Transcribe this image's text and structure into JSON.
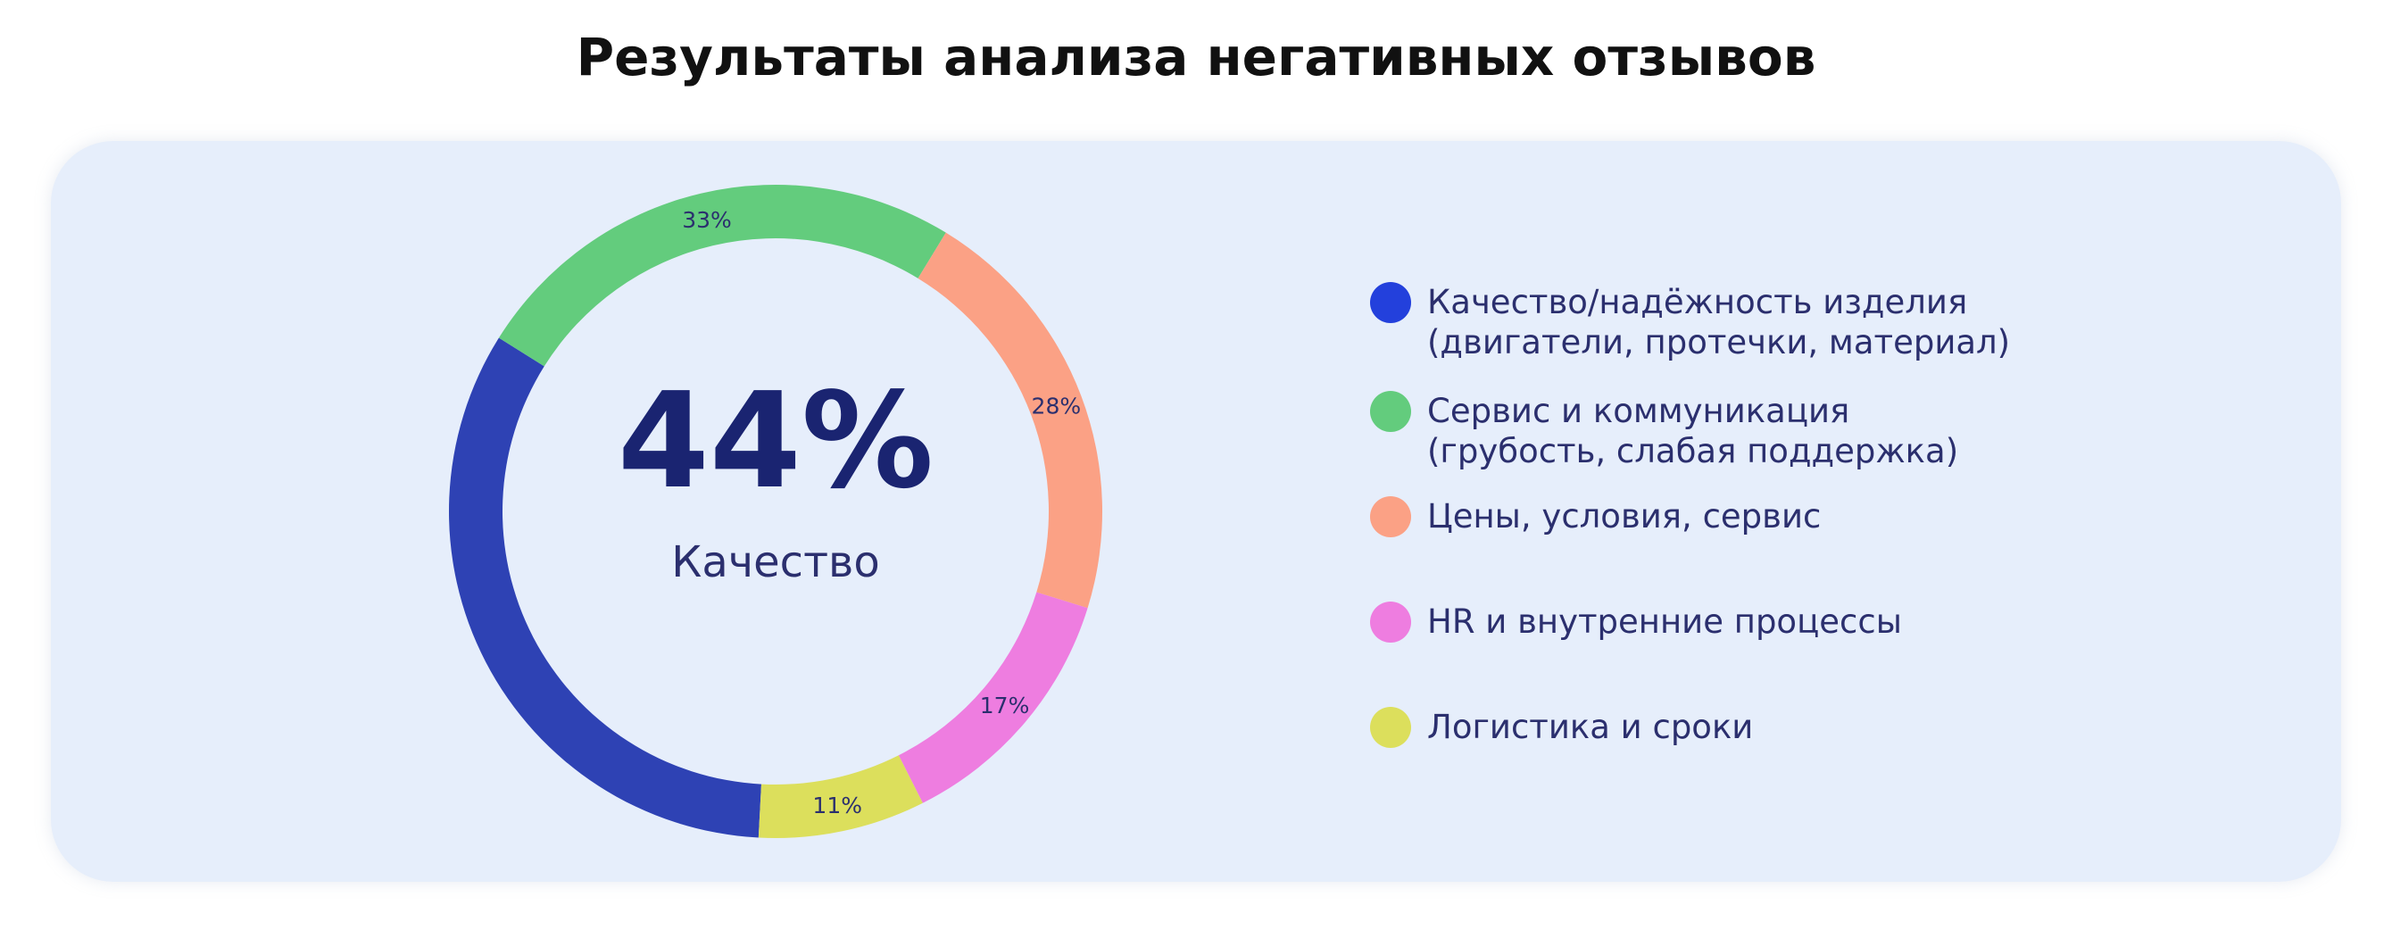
{
  "title": "Результаты анализа негативных отзывов",
  "center": {
    "value": "44%",
    "label": "Качество"
  },
  "chart_data": {
    "type": "pie",
    "title": "Результаты анализа негативных отзывов",
    "center_value": "44%",
    "center_label": "Качество",
    "slices": [
      {
        "label": "Качество/надёжность изделия (двигатели, протечки, материал)",
        "value": 44,
        "data_label": "",
        "color": "#2e42b4"
      },
      {
        "label": "Сервис и коммуникация (грубость, слабая поддержка)",
        "value": 33,
        "data_label": "33%",
        "color": "#63cc7d"
      },
      {
        "label": "Цены, условия, сервис",
        "value": 28,
        "data_label": "28%",
        "color": "#fba185"
      },
      {
        "label": "HR и внутренние процессы",
        "value": 17,
        "data_label": "17%",
        "color": "#ee7de0"
      },
      {
        "label": "Логистика и сроки",
        "value": 11,
        "data_label": "11%",
        "color": "#dcdf5c"
      }
    ],
    "legend_position": "right"
  },
  "legend": [
    {
      "label": "Качество/надёжность изделия\n(двигатели, протечки, материал)",
      "color": "#2340dc"
    },
    {
      "label": "Сервис и коммуникация\n(грубость, слабая поддержка)",
      "color": "#63cc7d"
    },
    {
      "label": "Цены, условия, сервис",
      "color": "#fba185"
    },
    {
      "label": "HR и внутренние процессы",
      "color": "#ee7de0"
    },
    {
      "label": "Логистика и сроки",
      "color": "#dcdf5c"
    }
  ],
  "colors": {
    "card_background": "#e6eefb",
    "center_value": "#1a2471",
    "label_text": "#2b2f6e"
  }
}
